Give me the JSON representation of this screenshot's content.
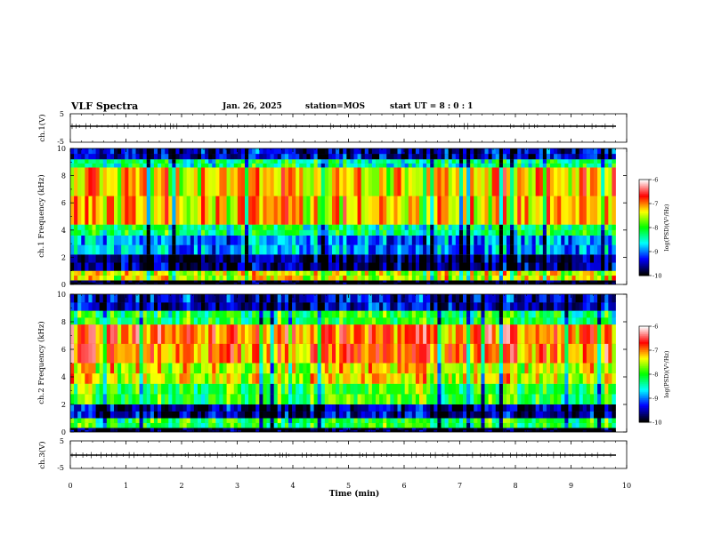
{
  "header": {
    "title": "VLF Spectra",
    "date": "Jan. 26, 2025",
    "station": "station=MOS",
    "start_ut": "start UT =  8 : 0  : 1"
  },
  "colorbar": {
    "label": "log(PSD)(V²/Hz)",
    "ticks": [
      "-6",
      "-7",
      "-8",
      "-9",
      "-10"
    ],
    "colors": [
      "#ffffff",
      "#ff0000",
      "#ffff00",
      "#00ff00",
      "#00ffff",
      "#0000ff",
      "#000000"
    ]
  },
  "chart_data": [
    {
      "type": "line",
      "panel": "ch.1 waveform",
      "ylabel": "ch.1(V)",
      "ylim": [
        -5,
        5
      ],
      "yticks": [
        "5",
        "-5"
      ],
      "xlim": [
        0,
        10
      ],
      "series": [
        {
          "x": [
            0,
            9.8
          ],
          "y": [
            0,
            0
          ]
        }
      ]
    },
    {
      "type": "heatmap",
      "panel": "ch.1 spectrogram",
      "ylabel": "ch.1 Frequency (kHz)",
      "ylim": [
        0,
        10
      ],
      "yticks": [
        "0",
        "2",
        "4",
        "6",
        "8",
        "10"
      ],
      "xlim": [
        0,
        9.8
      ],
      "colorbar_range": [
        -10,
        -6
      ],
      "band_profile": [
        {
          "f_from": 0,
          "f_to": 0.3,
          "log_psd": -10
        },
        {
          "f_from": 0.3,
          "f_to": 1.0,
          "log_psd": -7.4
        },
        {
          "f_from": 1.0,
          "f_to": 2.2,
          "log_psd": -9.7
        },
        {
          "f_from": 2.2,
          "f_to": 3.6,
          "log_psd": -8.9
        },
        {
          "f_from": 3.6,
          "f_to": 4.4,
          "log_psd": -8.2
        },
        {
          "f_from": 4.4,
          "f_to": 8.6,
          "log_psd": -7.2
        },
        {
          "f_from": 8.6,
          "f_to": 9.2,
          "log_psd": -8.3
        },
        {
          "f_from": 9.2,
          "f_to": 10,
          "log_psd": -9.5
        }
      ]
    },
    {
      "type": "heatmap",
      "panel": "ch.2 spectrogram",
      "ylabel": "ch.2 Frequency (kHz)",
      "ylim": [
        0,
        10
      ],
      "yticks": [
        "0",
        "2",
        "4",
        "6",
        "8",
        "10"
      ],
      "xlim": [
        0,
        9.8
      ],
      "colorbar_range": [
        -10,
        -6
      ],
      "band_profile": [
        {
          "f_from": 0,
          "f_to": 0.3,
          "log_psd": -10
        },
        {
          "f_from": 0.3,
          "f_to": 1.0,
          "log_psd": -8.1
        },
        {
          "f_from": 1.0,
          "f_to": 2.0,
          "log_psd": -9.6
        },
        {
          "f_from": 2.0,
          "f_to": 3.5,
          "log_psd": -8.0
        },
        {
          "f_from": 3.5,
          "f_to": 5.0,
          "log_psd": -7.4
        },
        {
          "f_from": 5.0,
          "f_to": 7.8,
          "log_psd": -6.9
        },
        {
          "f_from": 7.8,
          "f_to": 8.8,
          "log_psd": -8.1
        },
        {
          "f_from": 8.8,
          "f_to": 10,
          "log_psd": -9.5
        }
      ]
    },
    {
      "type": "line",
      "panel": "ch.3 waveform",
      "ylabel": "ch.3(V)",
      "ylim": [
        -5,
        5
      ],
      "yticks": [
        "5",
        "-5"
      ],
      "xlim": [
        0,
        10
      ],
      "series": [
        {
          "x": [
            0,
            9.8
          ],
          "y": [
            0,
            0
          ]
        }
      ]
    }
  ],
  "x_axis": {
    "label": "Time (min)",
    "ticks": [
      "0",
      "1",
      "2",
      "3",
      "4",
      "5",
      "6",
      "7",
      "8",
      "9",
      "10"
    ],
    "range": [
      0,
      10
    ],
    "data_end": 9.8
  }
}
